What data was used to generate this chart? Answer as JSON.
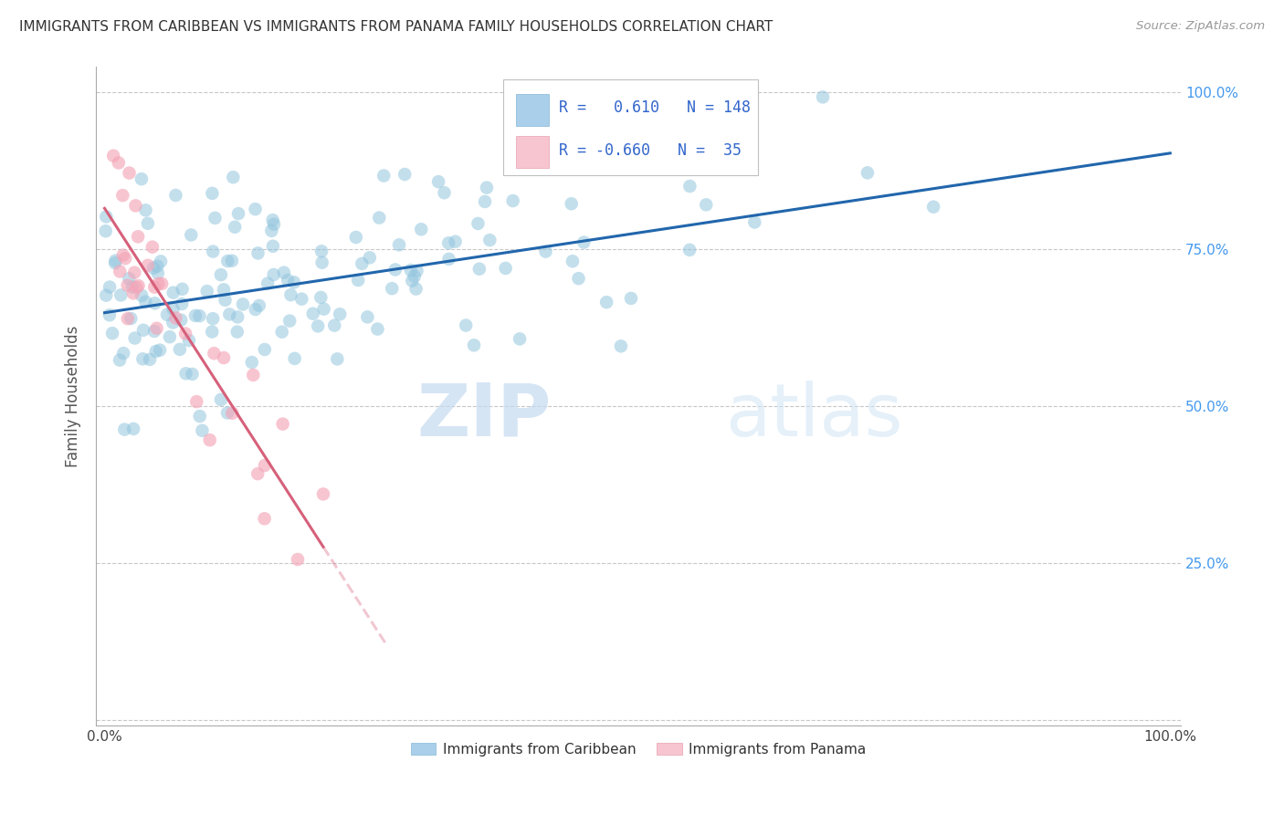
{
  "title": "IMMIGRANTS FROM CARIBBEAN VS IMMIGRANTS FROM PANAMA FAMILY HOUSEHOLDS CORRELATION CHART",
  "source": "Source: ZipAtlas.com",
  "ylabel": "Family Households",
  "xlim": [
    0,
    1
  ],
  "ylim": [
    0,
    1
  ],
  "blue_R": 0.61,
  "blue_N": 148,
  "pink_R": -0.66,
  "pink_N": 35,
  "blue_color": "#92c5de",
  "pink_color": "#f4a6b8",
  "blue_line_color": "#2166ac",
  "pink_line_color": "#d6607a",
  "grid_color": "#c8c8c8",
  "watermark_zip": "ZIP",
  "watermark_atlas": "atlas",
  "title_color": "#333333",
  "right_tick_color": "#4499ee",
  "legend_color": "#3366cc",
  "blue_seed": 77,
  "pink_seed": 99
}
